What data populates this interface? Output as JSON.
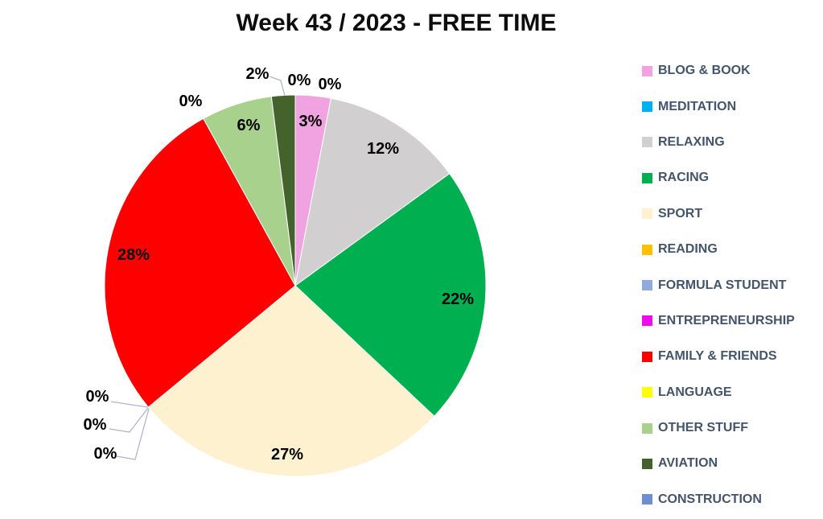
{
  "page": {
    "background": "#FFFFFF"
  },
  "chart_data": {
    "type": "pie",
    "title": "Week 43 / 2023 - FREE TIME",
    "legend_position": "right",
    "start_angle_deg": 0,
    "direction": "clockwise",
    "categories": [
      "BLOG & BOOK",
      "MEDITATION",
      "RELAXING",
      "RACING",
      "SPORT",
      "READING",
      "FORMULA STUDENT",
      "ENTREPRENEURSHIP",
      "FAMILY & FRIENDS",
      "LANGUAGE",
      "OTHER STUFF",
      "AVIATION",
      "CONSTRUCTION"
    ],
    "values": [
      3,
      0,
      12,
      22,
      27,
      0,
      0,
      0,
      28,
      0,
      6,
      2,
      0
    ],
    "labels": [
      "3%",
      "0%",
      "12%",
      "22%",
      "27%",
      "0%",
      "0%",
      "0%",
      "28%",
      "0%",
      "6%",
      "2%",
      "0%"
    ],
    "colors": [
      "#F0A3E0",
      "#00B0F0",
      "#D1CFCF",
      "#00B050",
      "#FDF1CF",
      "#FFC000",
      "#8FAADC",
      "#EB0DEB",
      "#FE0000",
      "#FFFF00",
      "#A9D18E",
      "#44632C",
      "#6D8FD1"
    ],
    "title_color": "#0D0D0D",
    "data_label_color": "#000000",
    "legend_text_color": "#44546A",
    "leader_line_color": "#B0B6C9"
  }
}
